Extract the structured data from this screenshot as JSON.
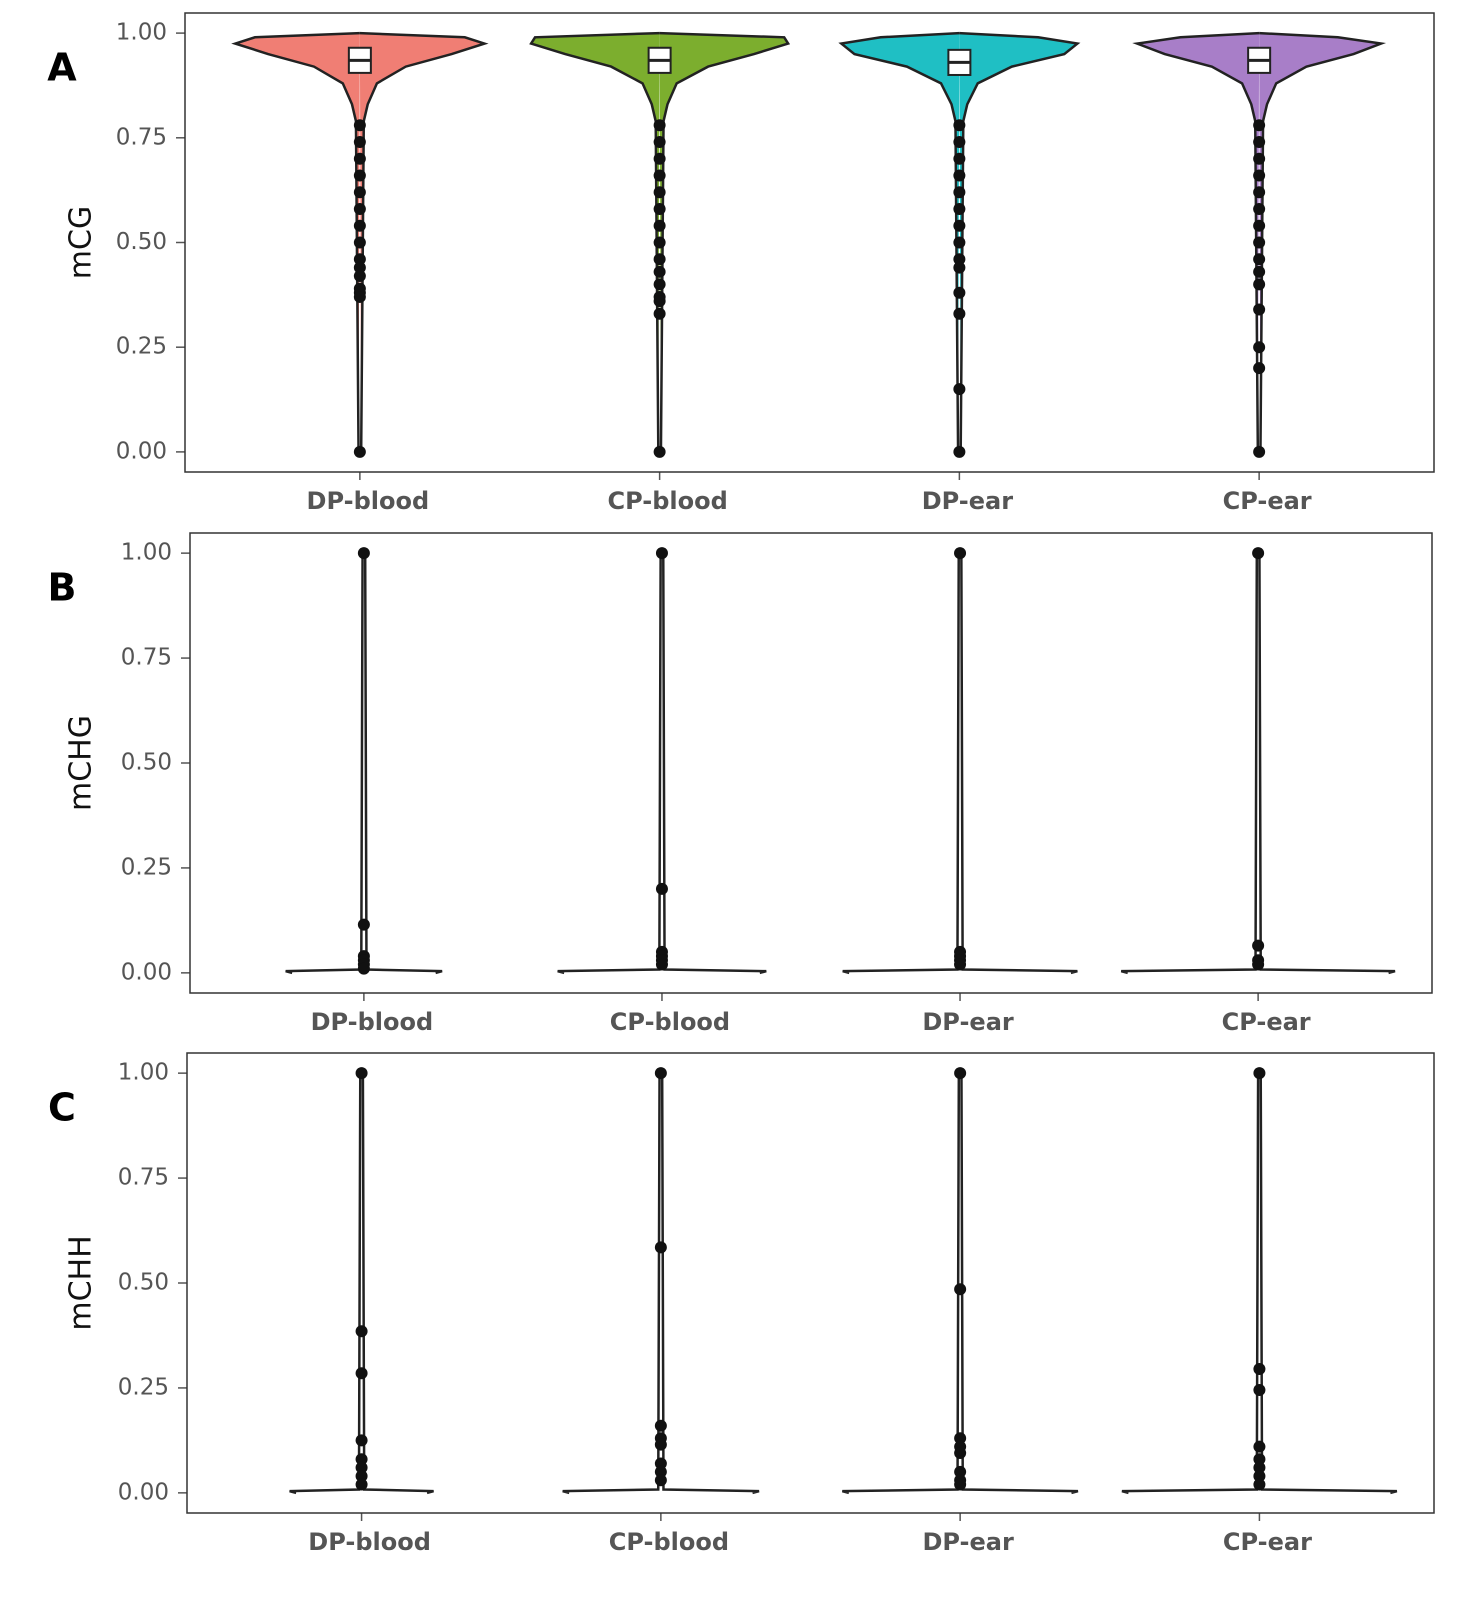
{
  "chart_data": [
    {
      "type": "violin",
      "panel_label": "A",
      "ylabel": "mCG",
      "categories": [
        "DP-blood",
        "CP-blood",
        "DP-ear",
        "CP-ear"
      ],
      "colors": [
        "#f07e74",
        "#7cae2e",
        "#1fbfc4",
        "#a87ec8"
      ],
      "ylim": [
        -0.048,
        1.048
      ],
      "yticks": [
        {
          "value": 0,
          "label": "0.00"
        },
        {
          "value": 0.25,
          "label": "0.25"
        },
        {
          "value": 0.5,
          "label": "0.50"
        },
        {
          "value": 0.75,
          "label": "0.75"
        },
        {
          "value": 1,
          "label": "1.00"
        }
      ],
      "density": [
        {
          "y": [
            0,
            0.79,
            0.83,
            0.88,
            0.92,
            0.95,
            0.975,
            0.99,
            1.0
          ],
          "width": [
            0.01,
            0.03,
            0.06,
            0.13,
            0.35,
            0.7,
            0.95,
            0.8,
            0
          ]
        },
        {
          "y": [
            0,
            0.79,
            0.83,
            0.88,
            0.92,
            0.95,
            0.975,
            0.99,
            1.0
          ],
          "width": [
            0.01,
            0.03,
            0.06,
            0.13,
            0.37,
            0.72,
            0.98,
            0.95,
            0
          ]
        },
        {
          "y": [
            0,
            0.79,
            0.83,
            0.88,
            0.92,
            0.95,
            0.975,
            0.99,
            1.0
          ],
          "width": [
            0.01,
            0.03,
            0.06,
            0.14,
            0.4,
            0.8,
            0.9,
            0.6,
            0
          ]
        },
        {
          "y": [
            0,
            0.79,
            0.83,
            0.88,
            0.92,
            0.95,
            0.975,
            0.99,
            1.0
          ],
          "width": [
            0.01,
            0.03,
            0.06,
            0.13,
            0.36,
            0.72,
            0.93,
            0.6,
            0
          ]
        }
      ],
      "box": [
        {
          "q1": 0.905,
          "median": 0.935,
          "q3": 0.965
        },
        {
          "q1": 0.905,
          "median": 0.935,
          "q3": 0.965
        },
        {
          "q1": 0.9,
          "median": 0.93,
          "q3": 0.96
        },
        {
          "q1": 0.905,
          "median": 0.935,
          "q3": 0.965
        }
      ],
      "outliers": [
        [
          0.78,
          0.74,
          0.7,
          0.66,
          0.62,
          0.58,
          0.54,
          0.5,
          0.46,
          0.44,
          0.42,
          0.39,
          0.38,
          0.37,
          0
        ],
        [
          0.78,
          0.74,
          0.7,
          0.66,
          0.62,
          0.58,
          0.54,
          0.5,
          0.46,
          0.43,
          0.4,
          0.37,
          0.36,
          0.33,
          0
        ],
        [
          0.78,
          0.74,
          0.7,
          0.66,
          0.62,
          0.58,
          0.54,
          0.5,
          0.46,
          0.44,
          0.38,
          0.33,
          0.15,
          0
        ],
        [
          0.78,
          0.74,
          0.7,
          0.66,
          0.62,
          0.58,
          0.54,
          0.5,
          0.46,
          0.43,
          0.4,
          0.34,
          0.25,
          0.2,
          0
        ]
      ]
    },
    {
      "type": "violin",
      "panel_label": "B",
      "ylabel": "mCHG",
      "categories": [
        "DP-blood",
        "CP-blood",
        "DP-ear",
        "CP-ear"
      ],
      "colors": [
        "#ffffff",
        "#ffffff",
        "#ffffff",
        "#ffffff"
      ],
      "ylim": [
        -0.048,
        1.048
      ],
      "yticks": [
        {
          "value": 0,
          "label": "0.00"
        },
        {
          "value": 0.25,
          "label": "0.25"
        },
        {
          "value": 0.5,
          "label": "0.50"
        },
        {
          "value": 0.75,
          "label": "0.75"
        },
        {
          "value": 1,
          "label": "1.00"
        }
      ],
      "density": [
        {
          "y": [
            0,
            0.004,
            0.008,
            1.0
          ],
          "width": [
            0.55,
            0.6,
            0.02,
            0.01
          ]
        },
        {
          "y": [
            0,
            0.004,
            0.008,
            1.0
          ],
          "width": [
            0.75,
            0.8,
            0.02,
            0.01
          ]
        },
        {
          "y": [
            0,
            0.004,
            0.008,
            1.0
          ],
          "width": [
            0.85,
            0.9,
            0.02,
            0.01
          ]
        },
        {
          "y": [
            0,
            0.004,
            0.008,
            1.0
          ],
          "width": [
            1.0,
            1.05,
            0.02,
            0.01
          ]
        }
      ],
      "outliers": [
        [
          1.0,
          0.115,
          0.04,
          0.03,
          0.02,
          0.01
        ],
        [
          1.0,
          0.2,
          0.05,
          0.04,
          0.03,
          0.02
        ],
        [
          1.0,
          0.05,
          0.04,
          0.03,
          0.02
        ],
        [
          1.0,
          0.065,
          0.03,
          0.02
        ]
      ]
    },
    {
      "type": "violin",
      "panel_label": "C",
      "ylabel": "mCHH",
      "categories": [
        "DP-blood",
        "CP-blood",
        "DP-ear",
        "CP-ear"
      ],
      "colors": [
        "#ffffff",
        "#ffffff",
        "#ffffff",
        "#ffffff"
      ],
      "ylim": [
        -0.048,
        1.048
      ],
      "yticks": [
        {
          "value": 0,
          "label": "0.00"
        },
        {
          "value": 0.25,
          "label": "0.25"
        },
        {
          "value": 0.5,
          "label": "0.50"
        },
        {
          "value": 0.75,
          "label": "0.75"
        },
        {
          "value": 1,
          "label": "1.00"
        }
      ],
      "density": [
        {
          "y": [
            0,
            0.004,
            0.008,
            1.0
          ],
          "width": [
            0.5,
            0.55,
            0.02,
            0.01
          ]
        },
        {
          "y": [
            0,
            0.004,
            0.008,
            1.0
          ],
          "width": [
            0.7,
            0.75,
            0.02,
            0.01
          ]
        },
        {
          "y": [
            0,
            0.004,
            0.008,
            1.0
          ],
          "width": [
            0.85,
            0.9,
            0.02,
            0.01
          ]
        },
        {
          "y": [
            0,
            0.004,
            0.008,
            1.0
          ],
          "width": [
            1.0,
            1.05,
            0.02,
            0.01
          ]
        }
      ],
      "outliers": [
        [
          1.0,
          0.385,
          0.285,
          0.125,
          0.08,
          0.06,
          0.04,
          0.02
        ],
        [
          1.0,
          0.585,
          0.16,
          0.13,
          0.115,
          0.07,
          0.05,
          0.03
        ],
        [
          1.0,
          0.485,
          0.13,
          0.11,
          0.095,
          0.05,
          0.03,
          0.02
        ],
        [
          1.0,
          0.295,
          0.245,
          0.11,
          0.08,
          0.06,
          0.04,
          0.02
        ]
      ]
    }
  ]
}
